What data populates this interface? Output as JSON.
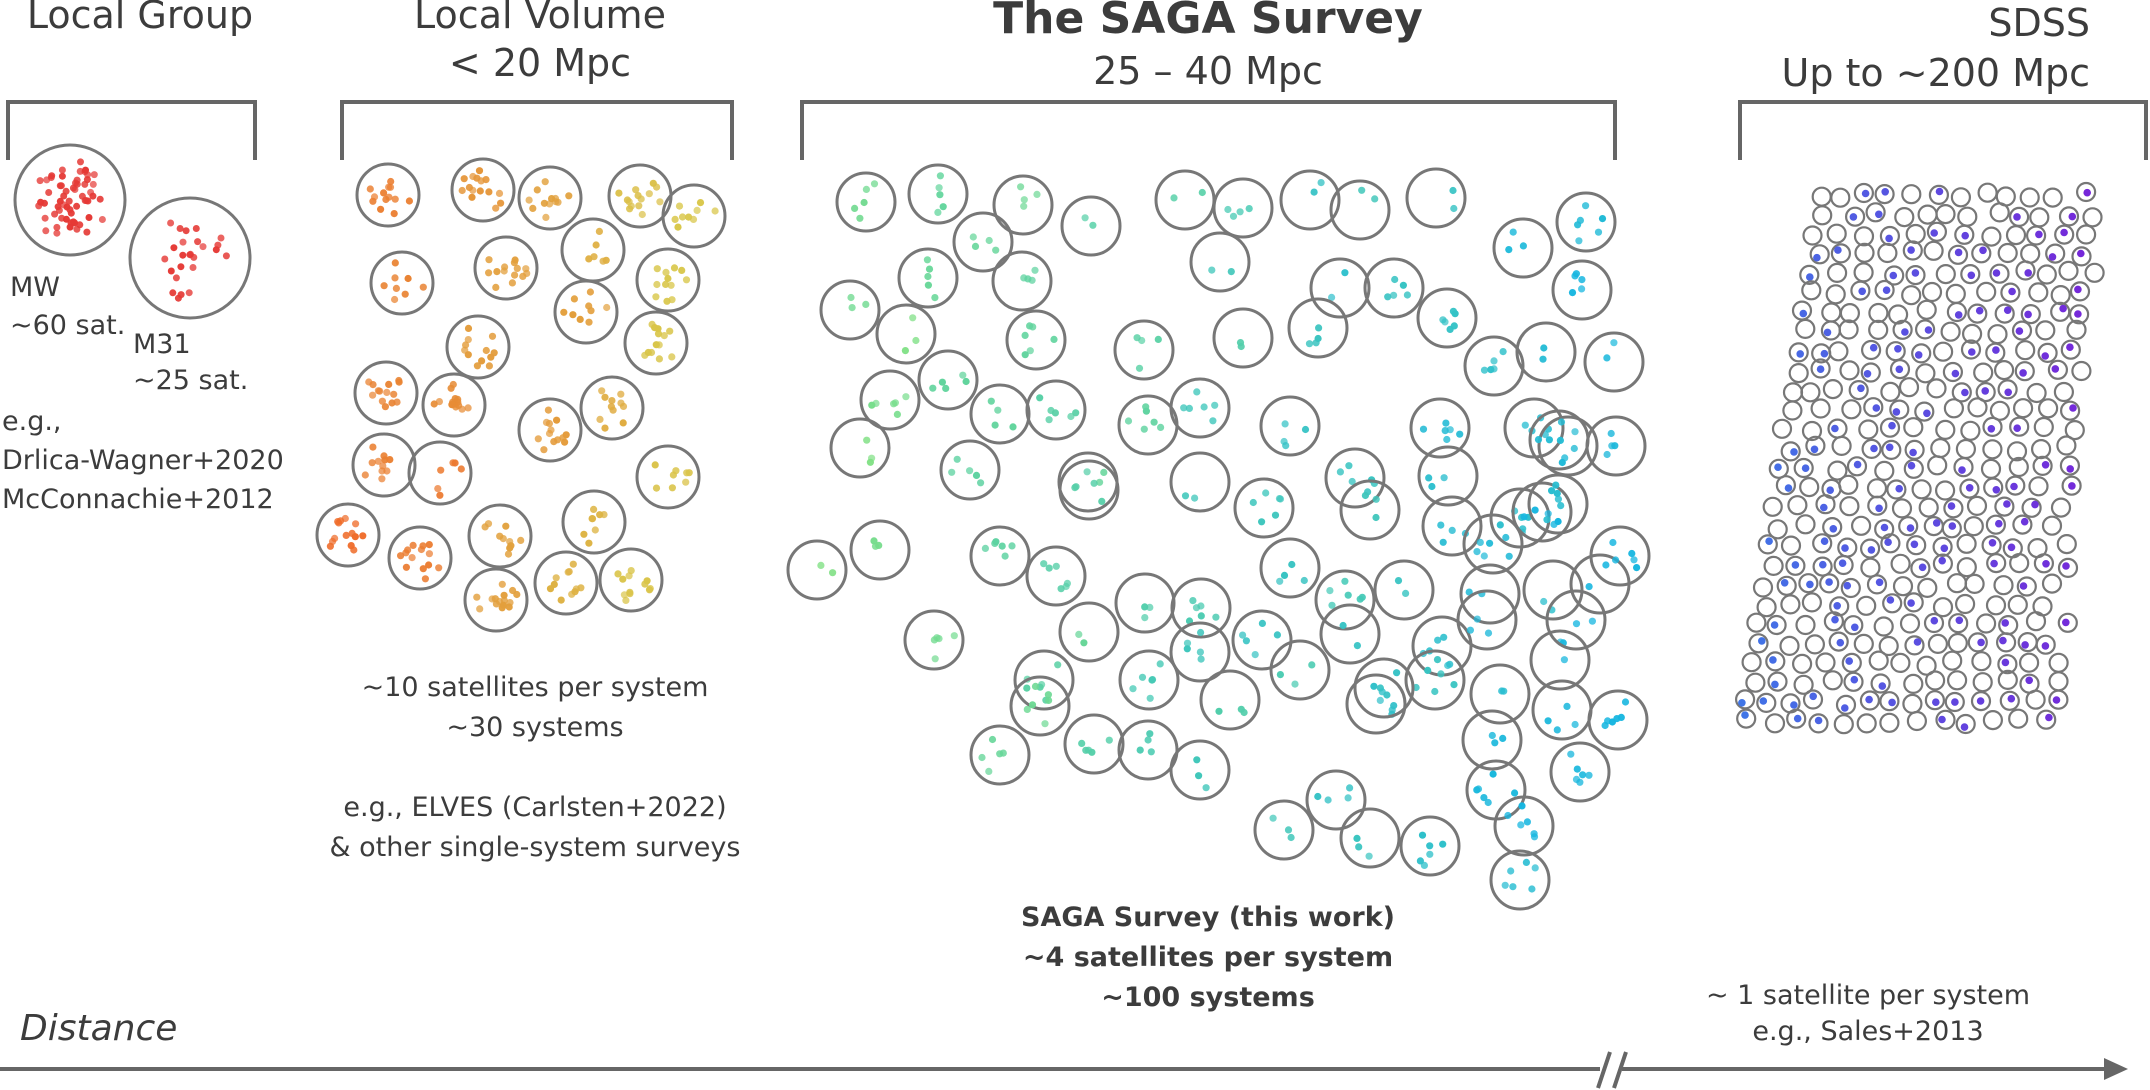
{
  "colors": {
    "circle_stroke": "#777777",
    "text": "#3c3c3c",
    "axis": "#666666",
    "local_group": "#e53935",
    "local_volume_start": "#ef6c2a",
    "local_volume_end": "#d9c74a",
    "saga_start": "#7fe083",
    "saga_end": "#16b6e0",
    "sdss_start": "#3c7be8",
    "sdss_end": "#7a22d8"
  },
  "sections": {
    "local_group": {
      "title": "Local Group",
      "mw_label": "MW",
      "mw_count": "~60 sat.",
      "m31_label": "M31",
      "m31_count": "~25 sat.",
      "refs": [
        "e.g.,",
        "Drlica-Wagner+2020",
        "McConnachie+2012"
      ]
    },
    "local_volume": {
      "title_line1": "Local Volume",
      "title_line2": "< 20 Mpc",
      "notes": [
        "~10 satellites per system",
        "~30 systems",
        "",
        "e.g., ELVES (Carlsten+2022)",
        "& other single-system surveys"
      ]
    },
    "saga": {
      "title_line1": "The SAGA Survey",
      "title_line2": "25 – 40 Mpc",
      "notes": [
        "SAGA Survey (this work)",
        "~4 satellites per system",
        "~100 systems"
      ]
    },
    "sdss": {
      "title_line1": "SDSS",
      "title_line2": "Up to ~200 Mpc",
      "notes": [
        "~ 1 satellite per system",
        "e.g., Sales+2013"
      ]
    }
  },
  "axis": {
    "label": "Distance"
  }
}
